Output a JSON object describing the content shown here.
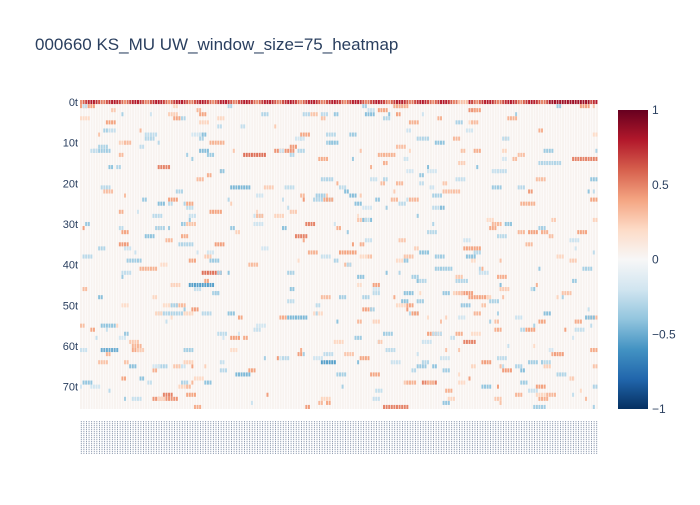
{
  "chart_data": {
    "type": "heatmap",
    "title": "000660 KS_MU UW_window_size=75_heatmap",
    "xlabel": "",
    "ylabel": "",
    "y_categories": [
      "0t",
      "10t",
      "20t",
      "30t",
      "40t",
      "50t",
      "60t",
      "70t"
    ],
    "y_range": [
      0,
      75
    ],
    "n_rows": 76,
    "n_columns": 200,
    "zmin": -1,
    "zmax": 1,
    "colorbar_ticks": [
      "1",
      "0.5",
      "0",
      "−0.5",
      "−1"
    ],
    "colorscale": [
      "#053061",
      "#2166ac",
      "#4393c3",
      "#92c5de",
      "#d1e5f0",
      "#f7f7f7",
      "#fddbc7",
      "#f4a582",
      "#d6604d",
      "#b2182b",
      "#67001f"
    ],
    "background_cell_value": 0.03,
    "row_0_values_note_free": true,
    "segments": [
      {
        "row": 0,
        "c0": 0,
        "c1": 200,
        "v": 0.6
      },
      {
        "row": 1,
        "c0": 0,
        "c1": 6,
        "v": 0.4
      },
      {
        "row": 2,
        "c0": 150,
        "c1": 153,
        "v": 0.45
      },
      {
        "row": 3,
        "c0": 70,
        "c1": 73,
        "v": -0.3
      },
      {
        "row": 4,
        "c0": 38,
        "c1": 41,
        "v": -0.3
      },
      {
        "row": 5,
        "c0": 10,
        "c1": 14,
        "v": 0.4
      },
      {
        "row": 5,
        "c0": 127,
        "c1": 131,
        "v": 0.35
      },
      {
        "row": 8,
        "c0": 25,
        "c1": 30,
        "v": -0.25
      },
      {
        "row": 9,
        "c0": 130,
        "c1": 135,
        "v": -0.3
      },
      {
        "row": 10,
        "c0": 50,
        "c1": 56,
        "v": 0.35
      },
      {
        "row": 12,
        "c0": 5,
        "c1": 12,
        "v": -0.35
      },
      {
        "row": 12,
        "c0": 75,
        "c1": 83,
        "v": 0.45
      },
      {
        "row": 13,
        "c0": 63,
        "c1": 72,
        "v": 0.55
      },
      {
        "row": 13,
        "c0": 115,
        "c1": 122,
        "v": 0.35
      },
      {
        "row": 14,
        "c0": 190,
        "c1": 200,
        "v": 0.5
      },
      {
        "row": 15,
        "c0": 177,
        "c1": 186,
        "v": -0.3
      },
      {
        "row": 16,
        "c0": 30,
        "c1": 35,
        "v": 0.5
      },
      {
        "row": 17,
        "c0": 160,
        "c1": 165,
        "v": -0.25
      },
      {
        "row": 19,
        "c0": 93,
        "c1": 98,
        "v": -0.3
      },
      {
        "row": 21,
        "c0": 58,
        "c1": 66,
        "v": -0.45
      },
      {
        "row": 22,
        "c0": 140,
        "c1": 147,
        "v": 0.3
      },
      {
        "row": 24,
        "c0": 90,
        "c1": 98,
        "v": -0.3
      },
      {
        "row": 25,
        "c0": 170,
        "c1": 176,
        "v": 0.35
      },
      {
        "row": 27,
        "c0": 50,
        "c1": 55,
        "v": 0.4
      },
      {
        "row": 30,
        "c0": 87,
        "c1": 91,
        "v": 0.5
      },
      {
        "row": 33,
        "c0": 83,
        "c1": 88,
        "v": 0.5
      },
      {
        "row": 35,
        "c0": 38,
        "c1": 44,
        "v": -0.3
      },
      {
        "row": 36,
        "c0": 148,
        "c1": 155,
        "v": 0.4
      },
      {
        "row": 37,
        "c0": 100,
        "c1": 107,
        "v": 0.4
      },
      {
        "row": 39,
        "c0": 18,
        "c1": 24,
        "v": -0.35
      },
      {
        "row": 41,
        "c0": 23,
        "c1": 30,
        "v": 0.35
      },
      {
        "row": 42,
        "c0": 47,
        "c1": 55,
        "v": 0.55
      },
      {
        "row": 44,
        "c0": 145,
        "c1": 150,
        "v": -0.3
      },
      {
        "row": 45,
        "c0": 42,
        "c1": 52,
        "v": -0.55
      },
      {
        "row": 48,
        "c0": 150,
        "c1": 158,
        "v": 0.4
      },
      {
        "row": 52,
        "c0": 30,
        "c1": 40,
        "v": -0.3
      },
      {
        "row": 53,
        "c0": 80,
        "c1": 88,
        "v": -0.45
      },
      {
        "row": 55,
        "c0": 8,
        "c1": 14,
        "v": -0.4
      },
      {
        "row": 57,
        "c0": 134,
        "c1": 140,
        "v": 0.4
      },
      {
        "row": 59,
        "c0": 148,
        "c1": 153,
        "v": 0.5
      },
      {
        "row": 61,
        "c0": 8,
        "c1": 15,
        "v": -0.5
      },
      {
        "row": 64,
        "c0": 93,
        "c1": 99,
        "v": -0.55
      },
      {
        "row": 67,
        "c0": 60,
        "c1": 66,
        "v": -0.45
      },
      {
        "row": 69,
        "c0": 132,
        "c1": 138,
        "v": 0.5
      },
      {
        "row": 72,
        "c0": 32,
        "c1": 36,
        "v": 0.5
      },
      {
        "row": 73,
        "c0": 28,
        "c1": 38,
        "v": 0.45
      },
      {
        "row": 75,
        "c0": 117,
        "c1": 127,
        "v": 0.5
      },
      {
        "row": 75,
        "c0": 175,
        "c1": 180,
        "v": -0.35
      }
    ]
  }
}
